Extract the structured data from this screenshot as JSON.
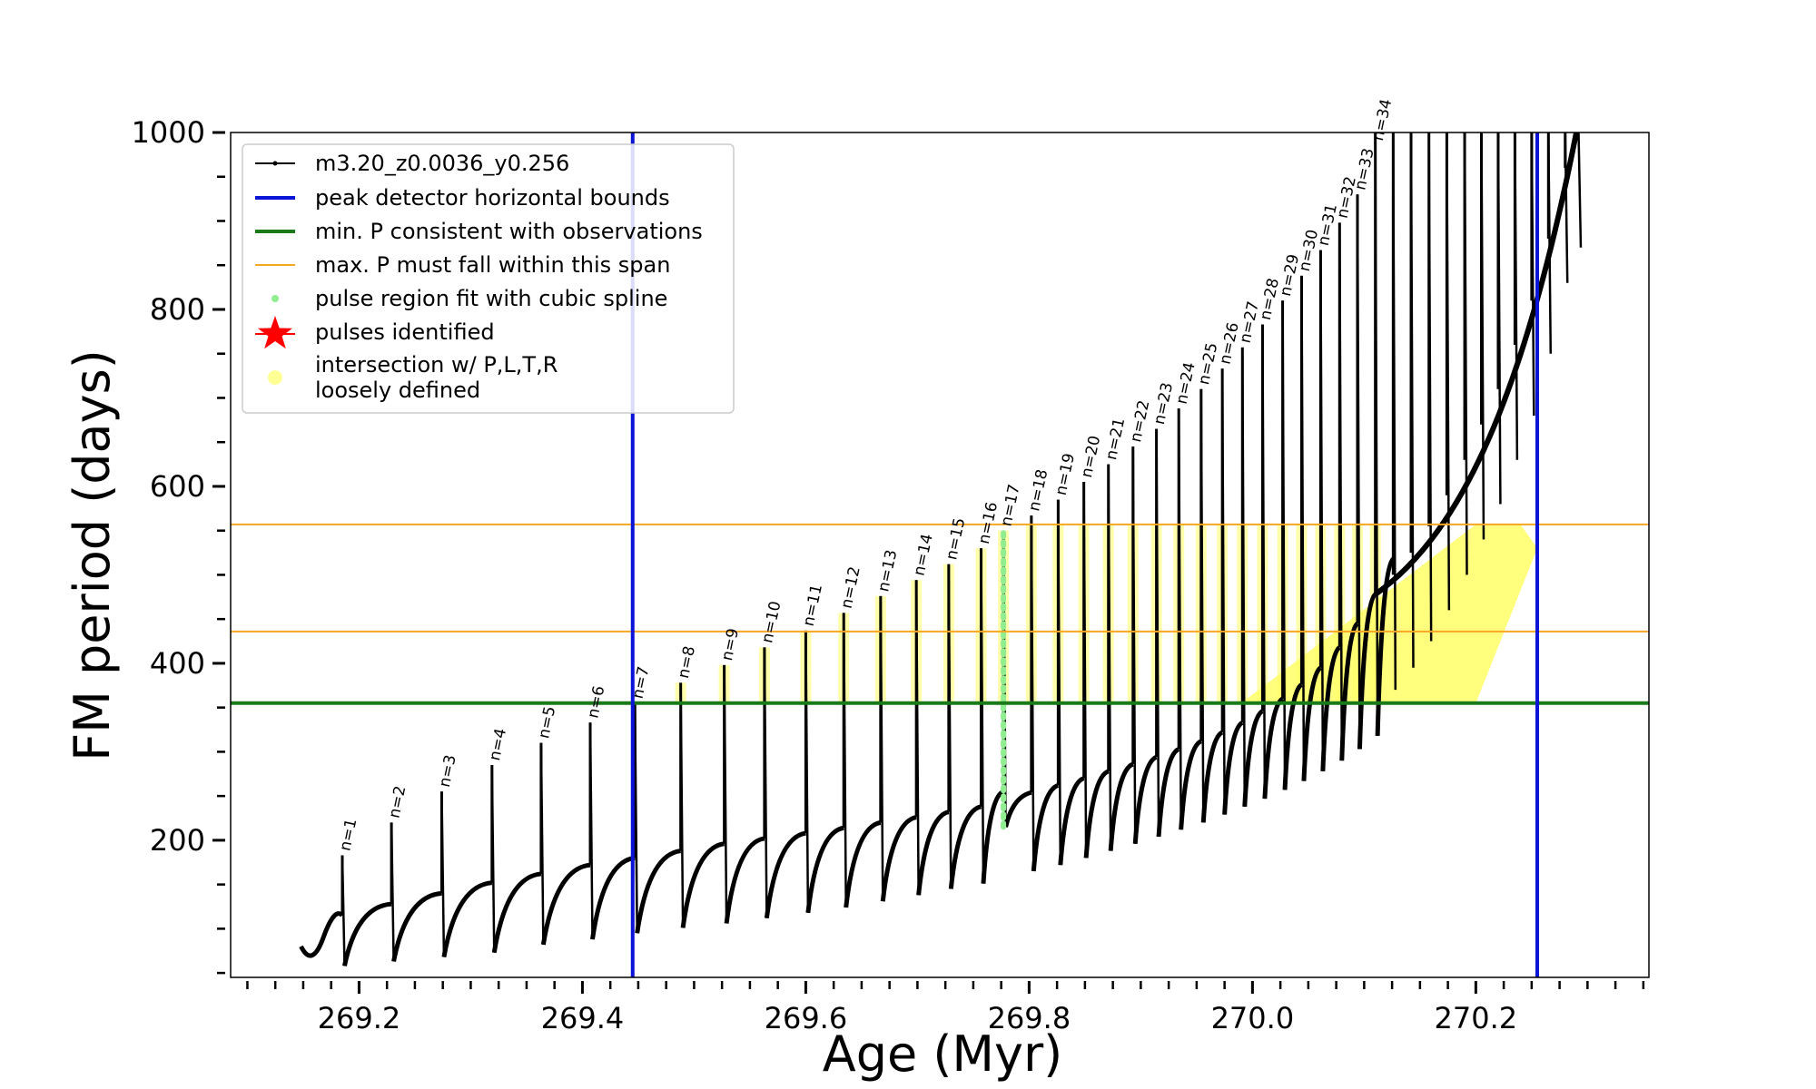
{
  "chart_data": {
    "type": "line",
    "title": "",
    "xlabel": "Age (Myr)",
    "ylabel": "FM period (days)",
    "xlim": [
      269.085,
      270.355
    ],
    "ylim": [
      45,
      1000
    ],
    "x_ticks": [
      "269.2",
      "269.4",
      "269.6",
      "269.8",
      "270.0",
      "270.2"
    ],
    "y_ticks": [
      "200",
      "400",
      "600",
      "800",
      "1000"
    ],
    "grid": false,
    "legend_position": "top-left",
    "legend": [
      {
        "key": "model",
        "label": "m3.20_z0.0036_y0.256",
        "color": "#000000"
      },
      {
        "key": "bounds",
        "label": "peak detector horizontal bounds",
        "color": "#0a14d6"
      },
      {
        "key": "minp",
        "label": "min. P consistent with observations",
        "color": "#1a7a1a"
      },
      {
        "key": "maxp",
        "label": "max. P must fall within this span",
        "color": "#f5a623"
      },
      {
        "key": "spline",
        "label": "pulse region fit with cubic spline",
        "color": "#90ee90"
      },
      {
        "key": "pulses",
        "label": "pulses identified",
        "color": "#ff0000"
      },
      {
        "key": "intersect",
        "label": "intersection w/ P,L,T,R\nloosely defined",
        "color": "#ffff66"
      }
    ],
    "reference_lines": {
      "peak_detector_bounds_x": [
        269.445,
        270.255
      ],
      "min_period_y": 355,
      "max_period_span_y": [
        436,
        557
      ]
    },
    "pulse_labels": [
      "n=1",
      "n=2",
      "n=3",
      "n=4",
      "n=5",
      "n=6",
      "n=7",
      "n=8",
      "n=9",
      "n=10",
      "n=11",
      "n=12",
      "n=13",
      "n=14",
      "n=15",
      "n=16",
      "n=17",
      "n=18",
      "n=19",
      "n=20",
      "n=21",
      "n=22",
      "n=23",
      "n=24",
      "n=25",
      "n=26",
      "n=27",
      "n=28",
      "n=29",
      "n=30",
      "n=31",
      "n=32",
      "n=33",
      "n=34"
    ],
    "series": [
      {
        "name": "m3.20_z0.0036_y0.256",
        "pulses": [
          {
            "x": 269.185,
            "peak": 183,
            "trough": 58,
            "plateau": 115
          },
          {
            "x": 269.229,
            "peak": 220,
            "trough": 63,
            "plateau": 128
          },
          {
            "x": 269.274,
            "peak": 255,
            "trough": 68,
            "plateau": 140
          },
          {
            "x": 269.319,
            "peak": 285,
            "trough": 73,
            "plateau": 152
          },
          {
            "x": 269.363,
            "peak": 310,
            "trough": 82,
            "plateau": 162
          },
          {
            "x": 269.407,
            "peak": 333,
            "trough": 88,
            "plateau": 172
          },
          {
            "x": 269.447,
            "peak": 355,
            "trough": 95,
            "plateau": 180
          },
          {
            "x": 269.488,
            "peak": 378,
            "trough": 101,
            "plateau": 188
          },
          {
            "x": 269.527,
            "peak": 398,
            "trough": 106,
            "plateau": 196
          },
          {
            "x": 269.563,
            "peak": 418,
            "trough": 112,
            "plateau": 202
          },
          {
            "x": 269.6,
            "peak": 437,
            "trough": 118,
            "plateau": 208
          },
          {
            "x": 269.634,
            "peak": 457,
            "trough": 124,
            "plateau": 214
          },
          {
            "x": 269.667,
            "peak": 476,
            "trough": 131,
            "plateau": 220
          },
          {
            "x": 269.699,
            "peak": 494,
            "trough": 138,
            "plateau": 226
          },
          {
            "x": 269.728,
            "peak": 512,
            "trough": 145,
            "plateau": 232
          },
          {
            "x": 269.757,
            "peak": 530,
            "trough": 151,
            "plateau": 238
          },
          {
            "x": 269.777,
            "peak": 550,
            "trough": 215,
            "plateau": 255
          },
          {
            "x": 269.802,
            "peak": 567,
            "trough": 165,
            "plateau": 254
          },
          {
            "x": 269.826,
            "peak": 585,
            "trough": 172,
            "plateau": 262
          },
          {
            "x": 269.849,
            "peak": 605,
            "trough": 180,
            "plateau": 270
          },
          {
            "x": 269.871,
            "peak": 625,
            "trough": 188,
            "plateau": 278
          },
          {
            "x": 269.893,
            "peak": 645,
            "trough": 196,
            "plateau": 286
          },
          {
            "x": 269.914,
            "peak": 665,
            "trough": 204,
            "plateau": 294
          },
          {
            "x": 269.934,
            "peak": 688,
            "trough": 212,
            "plateau": 303
          },
          {
            "x": 269.954,
            "peak": 710,
            "trough": 220,
            "plateau": 312
          },
          {
            "x": 269.973,
            "peak": 733,
            "trough": 229,
            "plateau": 322
          },
          {
            "x": 269.991,
            "peak": 757,
            "trough": 238,
            "plateau": 333
          },
          {
            "x": 270.009,
            "peak": 783,
            "trough": 247,
            "plateau": 346
          },
          {
            "x": 270.027,
            "peak": 810,
            "trough": 257,
            "plateau": 360
          },
          {
            "x": 270.044,
            "peak": 838,
            "trough": 267,
            "plateau": 376
          },
          {
            "x": 270.061,
            "peak": 867,
            "trough": 278,
            "plateau": 395
          },
          {
            "x": 270.078,
            "peak": 898,
            "trough": 290,
            "plateau": 418
          },
          {
            "x": 270.094,
            "peak": 930,
            "trough": 303,
            "plateau": 445
          },
          {
            "x": 270.11,
            "peak": 1000,
            "trough": 318,
            "plateau": 478
          }
        ]
      }
    ]
  }
}
